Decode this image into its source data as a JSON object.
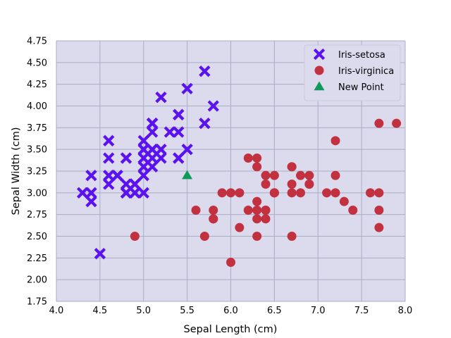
{
  "chart_data": {
    "type": "scatter",
    "title": "",
    "xlabel": "Sepal Length (cm)",
    "ylabel": "Sepal Width (cm)",
    "xlim": [
      4.0,
      8.0
    ],
    "ylim": [
      1.75,
      4.75
    ],
    "xticks": [
      4.0,
      4.5,
      5.0,
      5.5,
      6.0,
      6.5,
      7.0,
      7.5,
      8.0
    ],
    "xtick_labels": [
      "4.0",
      "4.5",
      "5.0",
      "5.5",
      "6.0",
      "6.5",
      "7.0",
      "7.5",
      "8.0"
    ],
    "yticks": [
      1.75,
      2.0,
      2.25,
      2.5,
      2.75,
      3.0,
      3.25,
      3.5,
      3.75,
      4.0,
      4.25,
      4.5,
      4.75
    ],
    "ytick_labels": [
      "1.75",
      "2.00",
      "2.25",
      "2.50",
      "2.75",
      "3.00",
      "3.25",
      "3.50",
      "3.75",
      "4.00",
      "4.25",
      "4.50",
      "4.75"
    ],
    "grid": true,
    "legend_position": "top-right",
    "background_color": "#dcdbee",
    "grid_color": "#a9adc4",
    "series": [
      {
        "name": "Iris-setosa",
        "marker": "x",
        "color": "#5b12f0",
        "points": [
          [
            5.1,
            3.5
          ],
          [
            4.9,
            3.0
          ],
          [
            4.7,
            3.2
          ],
          [
            4.6,
            3.1
          ],
          [
            5.0,
            3.6
          ],
          [
            5.4,
            3.9
          ],
          [
            4.6,
            3.4
          ],
          [
            5.0,
            3.4
          ],
          [
            4.4,
            2.9
          ],
          [
            4.9,
            3.1
          ],
          [
            5.4,
            3.7
          ],
          [
            4.8,
            3.4
          ],
          [
            4.8,
            3.0
          ],
          [
            4.3,
            3.0
          ],
          [
            5.8,
            4.0
          ],
          [
            5.7,
            4.4
          ],
          [
            5.4,
            3.9
          ],
          [
            5.1,
            3.5
          ],
          [
            5.7,
            3.8
          ],
          [
            5.1,
            3.8
          ],
          [
            5.4,
            3.4
          ],
          [
            5.1,
            3.7
          ],
          [
            4.6,
            3.6
          ],
          [
            5.1,
            3.3
          ],
          [
            4.8,
            3.4
          ],
          [
            5.0,
            3.0
          ],
          [
            5.0,
            3.4
          ],
          [
            5.2,
            3.5
          ],
          [
            5.2,
            3.4
          ],
          [
            4.7,
            3.2
          ],
          [
            4.8,
            3.1
          ],
          [
            5.4,
            3.4
          ],
          [
            5.2,
            4.1
          ],
          [
            5.5,
            4.2
          ],
          [
            4.9,
            3.1
          ],
          [
            5.0,
            3.2
          ],
          [
            5.5,
            3.5
          ],
          [
            4.9,
            3.1
          ],
          [
            4.4,
            3.0
          ],
          [
            5.1,
            3.4
          ],
          [
            5.0,
            3.5
          ],
          [
            4.5,
            2.3
          ],
          [
            4.4,
            3.2
          ],
          [
            5.0,
            3.5
          ],
          [
            5.1,
            3.8
          ],
          [
            4.8,
            3.0
          ],
          [
            5.1,
            3.8
          ],
          [
            4.6,
            3.2
          ],
          [
            5.3,
            3.7
          ],
          [
            5.0,
            3.3
          ]
        ]
      },
      {
        "name": "Iris-virginica",
        "marker": "o",
        "color": "#c23140",
        "points": [
          [
            6.3,
            3.3
          ],
          [
            5.8,
            2.7
          ],
          [
            7.1,
            3.0
          ],
          [
            6.3,
            2.9
          ],
          [
            6.5,
            3.0
          ],
          [
            7.6,
            3.0
          ],
          [
            4.9,
            2.5
          ],
          [
            7.3,
            2.9
          ],
          [
            6.7,
            2.5
          ],
          [
            7.2,
            3.6
          ],
          [
            6.5,
            3.2
          ],
          [
            6.4,
            2.7
          ],
          [
            6.8,
            3.0
          ],
          [
            5.7,
            2.5
          ],
          [
            5.8,
            2.8
          ],
          [
            6.4,
            3.2
          ],
          [
            6.5,
            3.0
          ],
          [
            7.7,
            3.8
          ],
          [
            7.7,
            2.6
          ],
          [
            6.0,
            2.2
          ],
          [
            6.9,
            3.2
          ],
          [
            5.6,
            2.8
          ],
          [
            7.7,
            2.8
          ],
          [
            6.3,
            2.7
          ],
          [
            6.7,
            3.3
          ],
          [
            7.2,
            3.2
          ],
          [
            6.2,
            2.8
          ],
          [
            6.1,
            3.0
          ],
          [
            6.4,
            2.8
          ],
          [
            7.2,
            3.0
          ],
          [
            7.4,
            2.8
          ],
          [
            7.9,
            3.8
          ],
          [
            6.4,
            2.8
          ],
          [
            6.3,
            2.8
          ],
          [
            6.1,
            2.6
          ],
          [
            7.7,
            3.0
          ],
          [
            6.3,
            3.4
          ],
          [
            6.4,
            3.1
          ],
          [
            6.0,
            3.0
          ],
          [
            6.9,
            3.1
          ],
          [
            6.7,
            3.1
          ],
          [
            6.9,
            3.1
          ],
          [
            5.8,
            2.7
          ],
          [
            6.8,
            3.2
          ],
          [
            6.7,
            3.3
          ],
          [
            6.7,
            3.0
          ],
          [
            6.3,
            2.5
          ],
          [
            6.5,
            3.0
          ],
          [
            6.2,
            3.4
          ],
          [
            5.9,
            3.0
          ]
        ]
      },
      {
        "name": "New Point",
        "marker": "^",
        "color": "#0e9a5a",
        "points": [
          [
            5.5,
            3.2
          ]
        ]
      }
    ]
  }
}
